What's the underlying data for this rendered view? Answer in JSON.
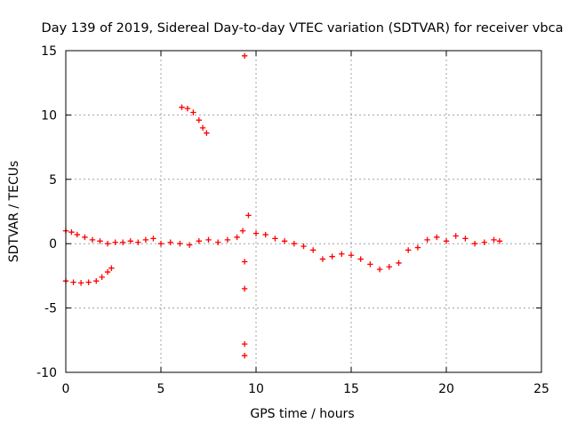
{
  "chart_data": {
    "type": "scatter",
    "title": "Day 139 of 2019, Sidereal Day-to-day VTEC variation (SDTVAR) for receiver vbca",
    "xlabel": "GPS time / hours",
    "ylabel": "SDTVAR / TECUs",
    "xlim": [
      0,
      25
    ],
    "ylim": [
      -10,
      15
    ],
    "x_ticks": [
      0,
      5,
      10,
      15,
      20,
      25
    ],
    "y_ticks": [
      -10,
      -5,
      0,
      5,
      10,
      15
    ],
    "grid": true,
    "marker": "+",
    "color": "#ff0000",
    "series": [
      {
        "name": "main band",
        "points": [
          [
            0.0,
            1.0
          ],
          [
            0.3,
            0.9
          ],
          [
            0.6,
            0.7
          ],
          [
            1.0,
            0.5
          ],
          [
            1.4,
            0.3
          ],
          [
            1.8,
            0.2
          ],
          [
            2.2,
            0.0
          ],
          [
            2.6,
            0.1
          ],
          [
            3.0,
            0.1
          ],
          [
            3.4,
            0.2
          ],
          [
            3.8,
            0.1
          ],
          [
            4.2,
            0.3
          ],
          [
            4.6,
            0.4
          ],
          [
            5.0,
            0.0
          ],
          [
            5.5,
            0.1
          ],
          [
            6.0,
            0.0
          ],
          [
            6.5,
            -0.1
          ],
          [
            7.0,
            0.2
          ],
          [
            7.5,
            0.3
          ],
          [
            8.0,
            0.1
          ],
          [
            8.5,
            0.3
          ],
          [
            9.0,
            0.5
          ],
          [
            9.3,
            1.0
          ],
          [
            9.6,
            2.2
          ],
          [
            10.0,
            0.8
          ],
          [
            10.5,
            0.7
          ],
          [
            11.0,
            0.4
          ],
          [
            11.5,
            0.2
          ],
          [
            12.0,
            0.0
          ],
          [
            12.5,
            -0.2
          ],
          [
            13.0,
            -0.5
          ],
          [
            13.5,
            -1.2
          ],
          [
            14.0,
            -1.0
          ],
          [
            14.5,
            -0.8
          ],
          [
            15.0,
            -0.9
          ],
          [
            15.5,
            -1.2
          ],
          [
            16.0,
            -1.6
          ],
          [
            16.5,
            -2.0
          ],
          [
            17.0,
            -1.8
          ],
          [
            17.5,
            -1.5
          ],
          [
            18.0,
            -0.5
          ],
          [
            18.5,
            -0.3
          ],
          [
            19.0,
            0.3
          ],
          [
            19.5,
            0.5
          ],
          [
            20.0,
            0.2
          ],
          [
            20.5,
            0.6
          ],
          [
            21.0,
            0.4
          ],
          [
            21.5,
            0.0
          ],
          [
            22.0,
            0.1
          ],
          [
            22.5,
            0.3
          ],
          [
            22.8,
            0.2
          ]
        ]
      },
      {
        "name": "lower arc",
        "points": [
          [
            0.0,
            -2.9
          ],
          [
            0.4,
            -3.0
          ],
          [
            0.8,
            -3.05
          ],
          [
            1.2,
            -3.0
          ],
          [
            1.6,
            -2.9
          ],
          [
            1.9,
            -2.6
          ],
          [
            2.2,
            -2.2
          ],
          [
            2.4,
            -1.9
          ]
        ]
      },
      {
        "name": "upper arc",
        "points": [
          [
            6.1,
            10.6
          ],
          [
            6.4,
            10.5
          ],
          [
            6.7,
            10.2
          ],
          [
            7.0,
            9.6
          ],
          [
            7.2,
            9.0
          ],
          [
            7.4,
            8.6
          ]
        ]
      },
      {
        "name": "outliers",
        "points": [
          [
            9.4,
            14.6
          ],
          [
            9.4,
            -1.4
          ],
          [
            9.4,
            -3.5
          ],
          [
            9.4,
            -7.8
          ],
          [
            9.4,
            -8.7
          ]
        ]
      }
    ]
  }
}
